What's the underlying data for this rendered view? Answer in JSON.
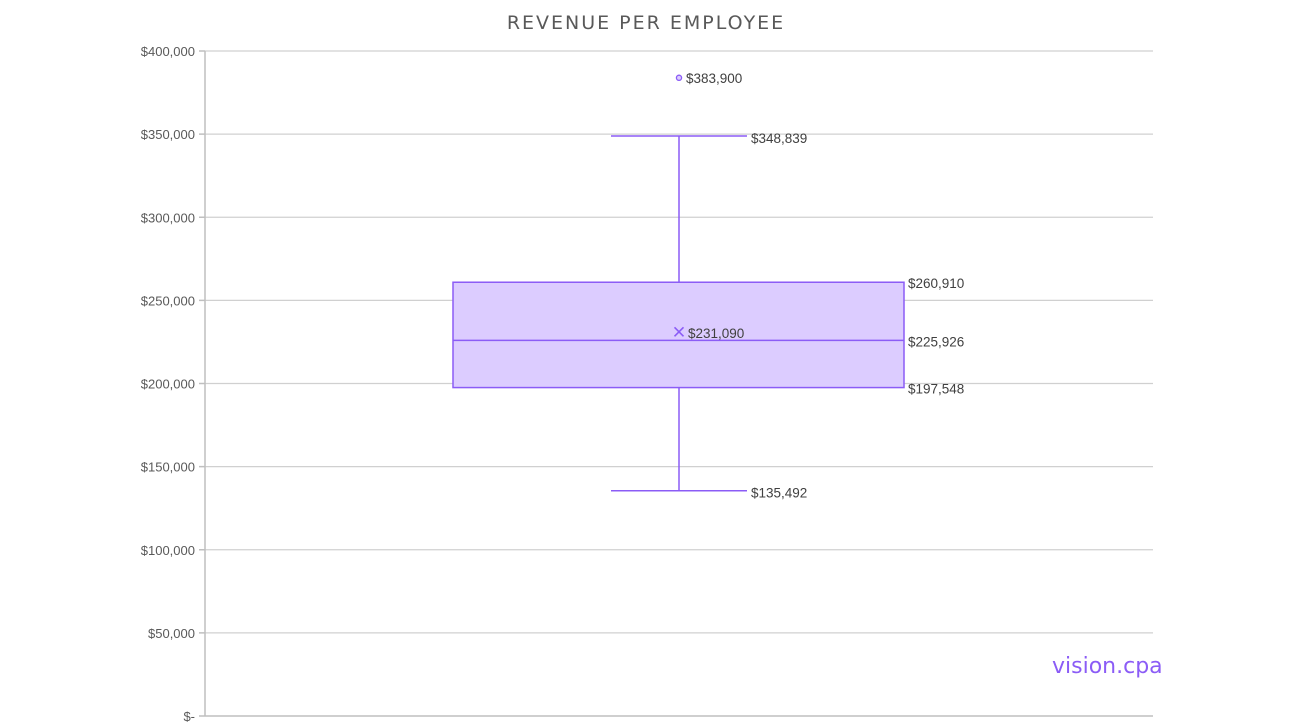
{
  "chart_data": {
    "type": "box",
    "title": "REVENUE PER EMPLOYEE",
    "xlabel": "",
    "ylabel": "",
    "ylim": [
      0,
      400000
    ],
    "y_ticks": [
      {
        "value": 0,
        "label": "$-"
      },
      {
        "value": 50000,
        "label": "$50,000"
      },
      {
        "value": 100000,
        "label": "$100,000"
      },
      {
        "value": 150000,
        "label": "$150,000"
      },
      {
        "value": 200000,
        "label": "$200,000"
      },
      {
        "value": 250000,
        "label": "$250,000"
      },
      {
        "value": 300000,
        "label": "$300,000"
      },
      {
        "value": 350000,
        "label": "$350,000"
      },
      {
        "value": 400000,
        "label": "$400,000"
      }
    ],
    "grid": true,
    "legend": "none",
    "colors": {
      "box_fill": "#dcccff",
      "box_stroke": "#8b5cf6"
    },
    "box": {
      "min": 135492,
      "q1": 197548,
      "median": 225926,
      "q3": 260910,
      "max": 348839,
      "mean": 231090,
      "outliers": [
        383900
      ]
    },
    "labels": {
      "min": "$135,492",
      "q1": "$197,548",
      "median": "$225,926",
      "q3": "$260,910",
      "max": "$348,839",
      "mean": "$231,090",
      "outliers": [
        "$383,900"
      ]
    }
  },
  "watermark": "vision.cpa"
}
